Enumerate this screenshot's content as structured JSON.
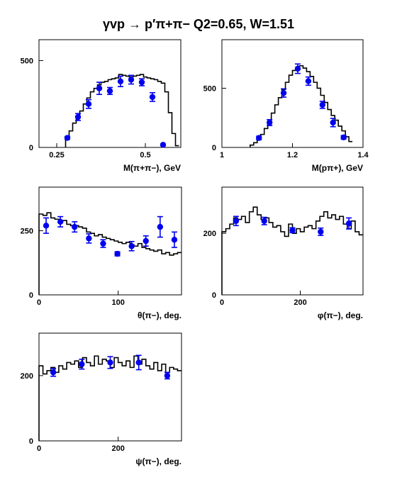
{
  "title": "γvp → p′π+π−   Q2=0.65, W=1.51",
  "colors": {
    "model": "#000000",
    "data": "#0000ee"
  },
  "chart_data": [
    {
      "type": "line+scatter",
      "xlabel": "M(π+π−), GeV",
      "xlim": [
        0.2,
        0.6
      ],
      "ylim": [
        0,
        620
      ],
      "xticks": [
        {
          "v": 0.25,
          "label": "0.25"
        },
        {
          "v": 0.5,
          "label": "0.5"
        }
      ],
      "yticks": [
        {
          "v": 0,
          "label": "0"
        },
        {
          "v": 500,
          "label": "500"
        }
      ],
      "model_step": {
        "edges": [
          0.275,
          0.285,
          0.295,
          0.305,
          0.315,
          0.325,
          0.335,
          0.345,
          0.355,
          0.365,
          0.375,
          0.385,
          0.395,
          0.405,
          0.415,
          0.425,
          0.435,
          0.445,
          0.455,
          0.465,
          0.475,
          0.485,
          0.495,
          0.505,
          0.515,
          0.525,
          0.535,
          0.545,
          0.555,
          0.565,
          0.575,
          0.585,
          0.595
        ],
        "values": [
          50,
          95,
          140,
          175,
          210,
          250,
          285,
          320,
          340,
          360,
          375,
          380,
          390,
          395,
          400,
          420,
          415,
          410,
          405,
          410,
          415,
          420,
          405,
          400,
          395,
          390,
          380,
          370,
          320,
          200,
          80,
          10
        ]
      },
      "points": [
        {
          "x": 0.28,
          "y": 55,
          "err": 8
        },
        {
          "x": 0.31,
          "y": 175,
          "err": 20
        },
        {
          "x": 0.34,
          "y": 250,
          "err": 25
        },
        {
          "x": 0.37,
          "y": 340,
          "err": 35
        },
        {
          "x": 0.4,
          "y": 325,
          "err": 20
        },
        {
          "x": 0.43,
          "y": 380,
          "err": 30
        },
        {
          "x": 0.46,
          "y": 390,
          "err": 25
        },
        {
          "x": 0.49,
          "y": 375,
          "err": 20
        },
        {
          "x": 0.52,
          "y": 290,
          "err": 25
        },
        {
          "x": 0.55,
          "y": 15,
          "err": 5
        }
      ]
    },
    {
      "type": "line+scatter",
      "xlabel": "M(pπ+), GeV",
      "xlim": [
        1.0,
        1.4
      ],
      "ylim": [
        0,
        910
      ],
      "xticks": [
        {
          "v": 1.0,
          "label": "1"
        },
        {
          "v": 1.2,
          "label": "1.2"
        },
        {
          "v": 1.4,
          "label": "1.4"
        }
      ],
      "yticks": [
        {
          "v": 0,
          "label": "0"
        },
        {
          "v": 500,
          "label": "500"
        }
      ],
      "model_step": {
        "edges": [
          1.08,
          1.09,
          1.1,
          1.11,
          1.12,
          1.13,
          1.14,
          1.15,
          1.16,
          1.17,
          1.18,
          1.19,
          1.2,
          1.21,
          1.22,
          1.23,
          1.24,
          1.25,
          1.26,
          1.27,
          1.28,
          1.29,
          1.3,
          1.31,
          1.32,
          1.33,
          1.34,
          1.35,
          1.36,
          1.37
        ],
        "values": [
          20,
          40,
          70,
          110,
          160,
          220,
          290,
          360,
          420,
          490,
          550,
          610,
          650,
          680,
          690,
          670,
          640,
          600,
          550,
          500,
          440,
          380,
          320,
          270,
          230,
          180,
          140,
          90,
          50
        ]
      },
      "points": [
        {
          "x": 1.105,
          "y": 80,
          "err": 15
        },
        {
          "x": 1.135,
          "y": 210,
          "err": 25
        },
        {
          "x": 1.175,
          "y": 460,
          "err": 35
        },
        {
          "x": 1.215,
          "y": 665,
          "err": 40
        },
        {
          "x": 1.245,
          "y": 560,
          "err": 35
        },
        {
          "x": 1.285,
          "y": 360,
          "err": 30
        },
        {
          "x": 1.315,
          "y": 210,
          "err": 35
        },
        {
          "x": 1.345,
          "y": 85,
          "err": 15
        }
      ]
    },
    {
      "type": "line+scatter",
      "xlabel": "θ(π−), deg.",
      "xlim": [
        0,
        180
      ],
      "ylim": [
        0,
        420
      ],
      "xticks": [
        {
          "v": 0,
          "label": "0"
        },
        {
          "v": 100,
          "label": "100"
        }
      ],
      "yticks": [
        {
          "v": 0,
          "label": "0"
        },
        {
          "v": 250,
          "label": "250"
        }
      ],
      "model_step": {
        "edges": [
          0,
          5,
          10,
          15,
          20,
          25,
          30,
          35,
          40,
          45,
          50,
          55,
          60,
          65,
          70,
          75,
          80,
          85,
          90,
          95,
          100,
          105,
          110,
          115,
          120,
          125,
          130,
          135,
          140,
          145,
          150,
          155,
          160,
          165,
          170,
          175,
          180
        ],
        "values": [
          315,
          310,
          320,
          300,
          295,
          285,
          290,
          275,
          270,
          270,
          265,
          260,
          245,
          240,
          230,
          235,
          225,
          220,
          215,
          210,
          205,
          200,
          205,
          195,
          190,
          200,
          185,
          180,
          175,
          170,
          175,
          160,
          165,
          155,
          160,
          165
        ]
      },
      "points": [
        {
          "x": 9,
          "y": 270,
          "err": 30
        },
        {
          "x": 27,
          "y": 285,
          "err": 20
        },
        {
          "x": 45,
          "y": 265,
          "err": 20
        },
        {
          "x": 63,
          "y": 220,
          "err": 18
        },
        {
          "x": 81,
          "y": 200,
          "err": 15
        },
        {
          "x": 99,
          "y": 160,
          "err": 8
        },
        {
          "x": 117,
          "y": 190,
          "err": 18
        },
        {
          "x": 135,
          "y": 210,
          "err": 20
        },
        {
          "x": 153,
          "y": 265,
          "err": 40
        },
        {
          "x": 171,
          "y": 215,
          "err": 30
        }
      ]
    },
    {
      "type": "line+scatter",
      "xlabel": "φ(π−), deg.",
      "xlim": [
        0,
        360
      ],
      "ylim": [
        0,
        350
      ],
      "xticks": [
        {
          "v": 0,
          "label": "0"
        },
        {
          "v": 200,
          "label": "200"
        }
      ],
      "yticks": [
        {
          "v": 0,
          "label": "0"
        },
        {
          "v": 200,
          "label": "200"
        }
      ],
      "model_step": {
        "edges": [
          0,
          10,
          20,
          30,
          40,
          50,
          60,
          70,
          80,
          90,
          100,
          110,
          120,
          130,
          140,
          150,
          160,
          170,
          180,
          190,
          200,
          210,
          220,
          230,
          240,
          250,
          260,
          270,
          280,
          290,
          300,
          310,
          320,
          330,
          340,
          350,
          360
        ],
        "values": [
          205,
          215,
          230,
          250,
          245,
          255,
          235,
          270,
          285,
          260,
          245,
          250,
          235,
          220,
          225,
          205,
          190,
          230,
          200,
          215,
          205,
          220,
          225,
          215,
          240,
          255,
          270,
          250,
          260,
          245,
          255,
          230,
          215,
          240,
          205,
          195
        ]
      },
      "points": [
        {
          "x": 36,
          "y": 240,
          "err": 15
        },
        {
          "x": 108,
          "y": 240,
          "err": 12
        },
        {
          "x": 180,
          "y": 210,
          "err": 8
        },
        {
          "x": 252,
          "y": 205,
          "err": 12
        },
        {
          "x": 324,
          "y": 232,
          "err": 18
        }
      ]
    },
    {
      "type": "line+scatter",
      "xlabel": "ψ(π−), deg.",
      "xlim": [
        0,
        360
      ],
      "ylim": [
        0,
        330
      ],
      "xticks": [
        {
          "v": 0,
          "label": "0"
        },
        {
          "v": 200,
          "label": "200"
        }
      ],
      "yticks": [
        {
          "v": 0,
          "label": "0"
        },
        {
          "v": 200,
          "label": "200"
        }
      ],
      "model_step": {
        "edges": [
          0,
          10,
          20,
          30,
          40,
          50,
          60,
          70,
          80,
          90,
          100,
          110,
          120,
          130,
          140,
          150,
          160,
          170,
          180,
          190,
          200,
          210,
          220,
          230,
          240,
          250,
          260,
          270,
          280,
          290,
          300,
          310,
          320,
          330,
          340,
          350,
          360
        ],
        "values": [
          230,
          205,
          215,
          225,
          210,
          230,
          220,
          240,
          235,
          245,
          225,
          255,
          240,
          230,
          260,
          235,
          250,
          245,
          225,
          255,
          240,
          230,
          245,
          225,
          260,
          235,
          250,
          230,
          220,
          240,
          215,
          235,
          210,
          225,
          220,
          215
        ]
      },
      "points": [
        {
          "x": 36,
          "y": 210,
          "err": 12
        },
        {
          "x": 108,
          "y": 235,
          "err": 15
        },
        {
          "x": 180,
          "y": 240,
          "err": 18
        },
        {
          "x": 252,
          "y": 240,
          "err": 22
        },
        {
          "x": 324,
          "y": 200,
          "err": 10
        }
      ]
    }
  ]
}
